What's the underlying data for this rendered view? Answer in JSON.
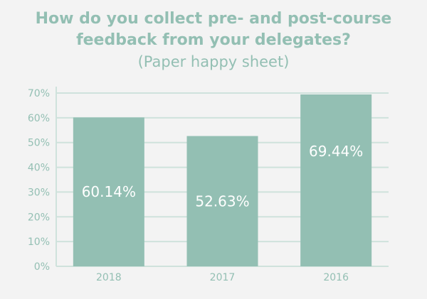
{
  "chart_data": {
    "type": "bar",
    "title_lines": [
      "How do you collect pre- and post-course",
      "feedback from your delegates?"
    ],
    "subtitle": "(Paper happy sheet)",
    "categories": [
      "2018",
      "2017",
      "2016"
    ],
    "values": [
      60.14,
      52.63,
      69.44
    ],
    "value_labels": [
      "60.14%",
      "52.63%",
      "69.44%"
    ],
    "y_ticks": [
      "0%",
      "10%",
      "20%",
      "30%",
      "40%",
      "50%",
      "60%",
      "70%"
    ],
    "ylim": [
      0,
      70
    ],
    "xlabel": "",
    "ylabel": "",
    "grid": true,
    "colors": {
      "bar": "#93bfb3",
      "grid": "#cfe2dc",
      "text": "#93bfb3",
      "label": "#ffffff",
      "background": "#f3f3f3"
    }
  }
}
